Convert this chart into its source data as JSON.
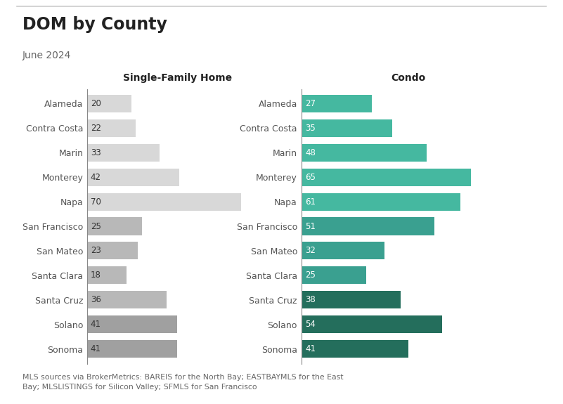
{
  "title": "DOM by County",
  "subtitle": "June 2024",
  "counties": [
    "Alameda",
    "Contra Costa",
    "Marin",
    "Monterey",
    "Napa",
    "San Francisco",
    "San Mateo",
    "Santa Clara",
    "Santa Cruz",
    "Solano",
    "Sonoma"
  ],
  "sfh_values": [
    20,
    22,
    33,
    42,
    70,
    25,
    23,
    18,
    36,
    41,
    41
  ],
  "condo_values": [
    27,
    35,
    48,
    65,
    61,
    51,
    32,
    25,
    38,
    54,
    41
  ],
  "sfh_colors": [
    "#d8d8d8",
    "#d8d8d8",
    "#d8d8d8",
    "#d8d8d8",
    "#d8d8d8",
    "#b8b8b8",
    "#b8b8b8",
    "#b8b8b8",
    "#b8b8b8",
    "#a0a0a0",
    "#a0a0a0"
  ],
  "condo_colors": [
    "#45b8a0",
    "#45b8a0",
    "#45b8a0",
    "#45b8a0",
    "#45b8a0",
    "#3aa090",
    "#3aa090",
    "#3aa090",
    "#246e5c",
    "#246e5c",
    "#246e5c"
  ],
  "sfh_header": "Single-Family Home",
  "condo_header": "Condo",
  "footnote": "MLS sources via BrokerMetrics: BAREIS for the North Bay; EASTBAYMLS for the East\nBay; MLSLISTINGS for Silicon Valley; SFMLS for San Francisco",
  "background_color": "#ffffff",
  "bar_text_color_sfh": "#333333",
  "bar_text_color_condo": "#ffffff",
  "title_color": "#222222",
  "subtitle_color": "#666666",
  "label_color": "#555555"
}
